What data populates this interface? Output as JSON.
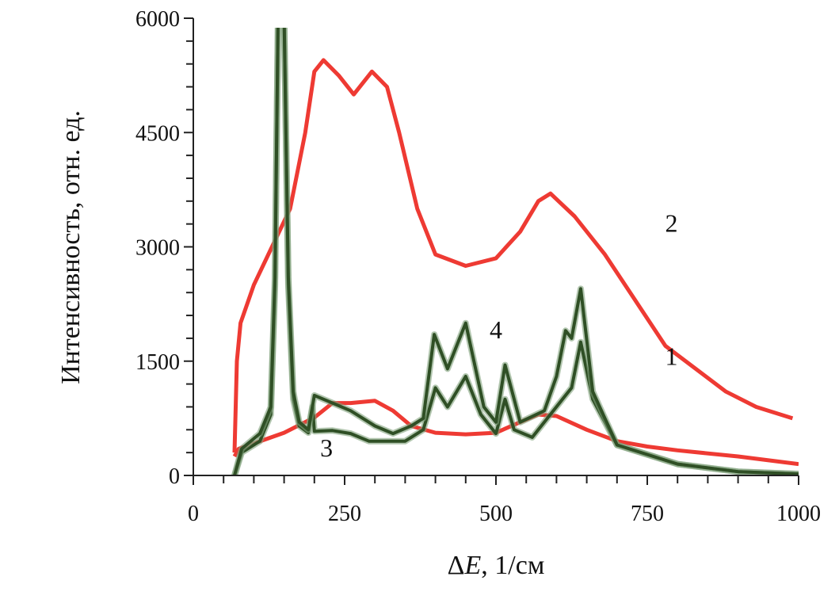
{
  "chart_data": {
    "type": "line",
    "title": "",
    "xlabel": {
      "prefix": "Δ",
      "var": "E",
      "unit": ", 1/см"
    },
    "ylabel": "Интенсивность, отн. ед.",
    "xlim": [
      0,
      1000
    ],
    "ylim": [
      0,
      6000
    ],
    "xticks": [
      0,
      250,
      500,
      750,
      1000
    ],
    "yticks": [
      0,
      1500,
      3000,
      4500,
      6000
    ],
    "x_minor_step": 50,
    "y_minor_step": 300,
    "grid": false,
    "colors": {
      "red": "#ee3a33",
      "green": "#2f4f25",
      "green_light": "#7fa07a",
      "axis": "#222222"
    },
    "series": [
      {
        "name": "1",
        "color": "#ee3a33",
        "x": [
          68,
          75,
          100,
          150,
          200,
          230,
          260,
          300,
          330,
          360,
          400,
          450,
          500,
          540,
          570,
          600,
          650,
          700,
          750,
          800,
          900,
          1000
        ],
        "y": [
          250,
          350,
          420,
          560,
          760,
          950,
          950,
          980,
          850,
          650,
          560,
          540,
          560,
          700,
          800,
          780,
          600,
          450,
          380,
          330,
          250,
          150
        ]
      },
      {
        "name": "2",
        "color": "#ee3a33",
        "x": [
          68,
          72,
          78,
          100,
          130,
          160,
          185,
          200,
          215,
          240,
          265,
          295,
          320,
          340,
          370,
          400,
          450,
          500,
          540,
          570,
          590,
          630,
          680,
          730,
          780,
          830,
          880,
          930,
          990
        ],
        "y": [
          300,
          1500,
          2000,
          2500,
          3000,
          3500,
          4500,
          5300,
          5450,
          5250,
          5000,
          5300,
          5100,
          4500,
          3500,
          2900,
          2750,
          2850,
          3200,
          3600,
          3700,
          3400,
          2900,
          2300,
          1700,
          1400,
          1100,
          900,
          750
        ]
      },
      {
        "name": "3",
        "color": "#2f4f25",
        "x": [
          68,
          80,
          110,
          128,
          135,
          140,
          150,
          157,
          165,
          175,
          190,
          197,
          200,
          230,
          260,
          290,
          350,
          380,
          400,
          420,
          450,
          475,
          500,
          515,
          530,
          560,
          610,
          625,
          640,
          660,
          700,
          800,
          900,
          1000
        ],
        "y": [
          0,
          300,
          450,
          800,
          2500,
          6000,
          6000,
          2500,
          1000,
          650,
          560,
          900,
          580,
          590,
          550,
          450,
          450,
          600,
          1150,
          900,
          1300,
          800,
          550,
          1000,
          600,
          500,
          1000,
          1150,
          1750,
          1000,
          400,
          150,
          50,
          20
        ]
      },
      {
        "name": "4",
        "color": "#2f4f25",
        "x": [
          68,
          80,
          110,
          128,
          135,
          140,
          150,
          157,
          165,
          175,
          190,
          200,
          230,
          260,
          300,
          330,
          360,
          380,
          398,
          420,
          450,
          480,
          500,
          515,
          540,
          580,
          600,
          615,
          625,
          640,
          660,
          700,
          800,
          900,
          1000
        ],
        "y": [
          0,
          350,
          550,
          900,
          2600,
          6000,
          6000,
          2600,
          1100,
          700,
          600,
          1050,
          950,
          850,
          650,
          550,
          650,
          750,
          1850,
          1400,
          2000,
          900,
          700,
          1450,
          700,
          850,
          1300,
          1900,
          1800,
          2450,
          1100,
          400,
          150,
          50,
          20
        ]
      }
    ],
    "annotations": [
      {
        "text": "1",
        "x": 790,
        "y": 1450
      },
      {
        "text": "2",
        "x": 790,
        "y": 3200
      },
      {
        "text": "3",
        "x": 220,
        "y": 250
      },
      {
        "text": "4",
        "x": 500,
        "y": 1800
      }
    ]
  }
}
